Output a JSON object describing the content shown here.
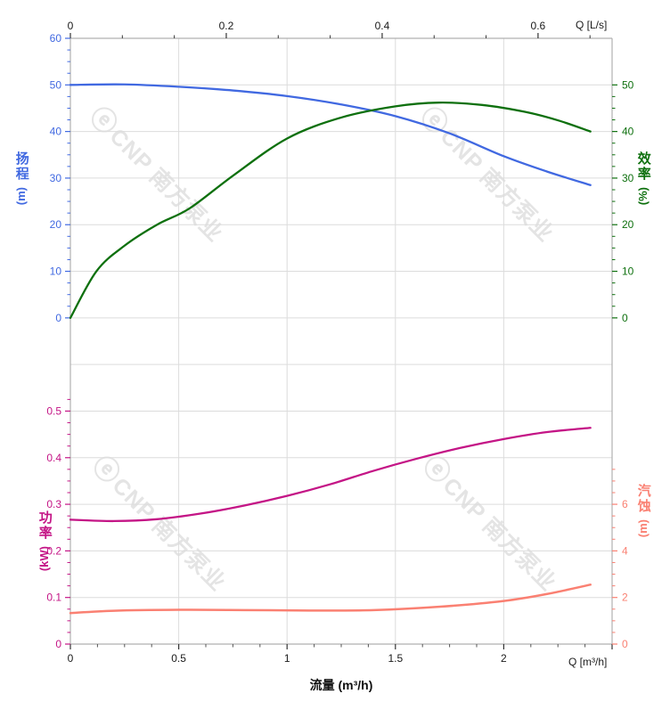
{
  "watermark": {
    "logo": "ⓔ",
    "brand": "CNP 南方泵业"
  },
  "chart_data": {
    "type": "line",
    "title": "",
    "grid": true,
    "legend": "none",
    "axes": {
      "x_top": {
        "label": "Q [L/s]",
        "ticks": [
          0,
          0.2,
          0.4,
          0.6
        ],
        "range": [
          0,
          0.695
        ],
        "minor_step": 0.0667,
        "color": "#1a1a1a"
      },
      "x_bottom": {
        "label": "Q [m³/h]",
        "title": "流量 (m³/h)",
        "ticks": [
          0,
          0.5,
          1,
          1.5,
          2
        ],
        "range": [
          0,
          2.5
        ],
        "minor_step": 0.125,
        "color": "#1a1a1a"
      },
      "y_head": {
        "title_cn": "扬程",
        "unit": "(m)",
        "ticks": [
          0,
          10,
          20,
          30,
          40,
          50,
          60
        ],
        "range": [
          0,
          60
        ],
        "minor_step": 2.5,
        "color": "#4169e1"
      },
      "y_eff": {
        "title_cn": "效率",
        "unit": "(%)",
        "ticks": [
          0,
          10,
          20,
          30,
          40,
          50
        ],
        "range": [
          0,
          65
        ],
        "minor_step": 2.5,
        "color": "#0e700e"
      },
      "y_power": {
        "title_cn": "功率",
        "unit": "(kW)",
        "ticks": [
          0,
          0.1,
          0.2,
          0.3,
          0.4,
          0.5
        ],
        "range": [
          0,
          0.5
        ],
        "minor_step": 0.025,
        "color": "#c41586"
      },
      "y_npsh": {
        "title_cn": "汽蚀",
        "unit": "(m)",
        "ticks": [
          0,
          2,
          4,
          6
        ],
        "range": [
          0,
          10
        ],
        "minor_step": 0.5,
        "color": "#fa8072"
      }
    },
    "series": [
      {
        "name": "head",
        "axis": "y_head",
        "color": "#4169e1",
        "width": 2.3,
        "x": [
          0,
          0.25,
          0.5,
          0.75,
          1.0,
          1.25,
          1.5,
          1.75,
          2.0,
          2.2,
          2.4
        ],
        "y": [
          50,
          50.1,
          49.6,
          48.8,
          47.6,
          45.8,
          43.3,
          39.6,
          34.7,
          31.4,
          28.5
        ]
      },
      {
        "name": "efficiency",
        "axis": "y_eff",
        "color": "#0e700e",
        "width": 2.3,
        "x": [
          0,
          0.12,
          0.25,
          0.4,
          0.55,
          0.75,
          1.0,
          1.25,
          1.5,
          1.7,
          1.9,
          2.1,
          2.25,
          2.4
        ],
        "y": [
          0,
          10,
          15.5,
          20,
          23.5,
          30.5,
          38.5,
          43,
          45.4,
          46.2,
          45.7,
          44.2,
          42.4,
          40
        ]
      },
      {
        "name": "power",
        "axis": "y_power",
        "color": "#c41586",
        "width": 2.3,
        "x": [
          0,
          0.2,
          0.4,
          0.6,
          0.8,
          1.0,
          1.2,
          1.4,
          1.6,
          1.8,
          2.0,
          2.2,
          2.4
        ],
        "y": [
          0.267,
          0.264,
          0.268,
          0.28,
          0.297,
          0.318,
          0.343,
          0.372,
          0.398,
          0.421,
          0.44,
          0.455,
          0.464
        ]
      },
      {
        "name": "npsh",
        "axis": "y_npsh",
        "color": "#fa8072",
        "width": 2.5,
        "x": [
          0,
          0.2,
          0.5,
          0.8,
          1.1,
          1.4,
          1.7,
          2.0,
          2.2,
          2.4
        ],
        "y": [
          1.33,
          1.43,
          1.47,
          1.46,
          1.44,
          1.46,
          1.6,
          1.85,
          2.15,
          2.55
        ]
      }
    ]
  }
}
